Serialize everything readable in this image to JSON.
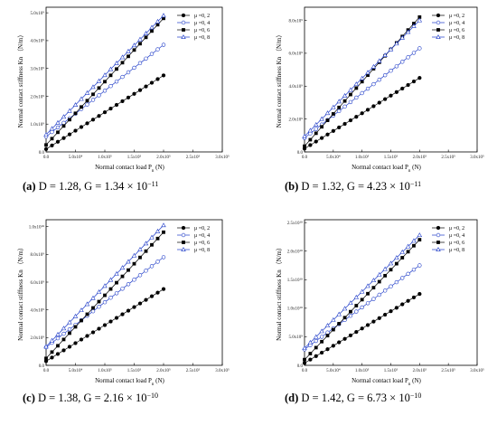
{
  "chart_data": [
    {
      "type": "line",
      "panel": "a",
      "caption": {
        "label": "(a)",
        "text": "D = 1.28, G = 1.34 × 10",
        "exponent": "−11"
      },
      "xlabel": "Normal contact load P",
      "xlabel_sub": "n",
      "xlabel_unit": " (N)",
      "ylabel": "Normal contact stiffness Kn （N/m）",
      "xlim": [
        0,
        300000
      ],
      "ylim": [
        0,
        5200000000
      ],
      "xtick_values": [
        0,
        50000,
        100000,
        150000,
        200000,
        250000,
        300000
      ],
      "xtick_labels": [
        "0.0",
        "5.0x10⁴",
        "1.0x10⁵",
        "1.5x10⁵",
        "2.0x10⁵",
        "2.5x10⁵",
        "3.0x10⁵"
      ],
      "ytick_values": [
        0,
        1000000000,
        2000000000,
        3000000000,
        4000000000,
        5000000000
      ],
      "ytick_labels": [
        "0.0",
        "1.0x10⁹",
        "2.0x10⁹",
        "3.0x10⁹",
        "4.0x10⁹",
        "5.0x10⁹"
      ],
      "legend": "top-right",
      "series": [
        {
          "name": "μ =0, 2",
          "marker": "circle-filled",
          "color": "#000000",
          "start": [
            0,
            100000000
          ],
          "end": [
            200000,
            2750000000
          ]
        },
        {
          "name": "μ =0, 4",
          "marker": "circle-open",
          "color": "#1f3cc8",
          "start": [
            0,
            550000000
          ],
          "end": [
            200000,
            3850000000
          ]
        },
        {
          "name": "μ =0, 6",
          "marker": "square-filled",
          "color": "#000000",
          "start": [
            0,
            250000000
          ],
          "end": [
            200000,
            4800000000
          ]
        },
        {
          "name": "μ =0, 8",
          "marker": "triangle-open",
          "color": "#1f3cc8",
          "start": [
            0,
            620000000
          ],
          "end": [
            200000,
            4900000000
          ]
        }
      ]
    },
    {
      "type": "line",
      "panel": "b",
      "caption": {
        "label": "(b)",
        "text": "D = 1.32, G = 4.23 × 10",
        "exponent": "−11"
      },
      "xlabel": "Normal contact load P",
      "xlabel_sub": "n",
      "xlabel_unit": " (N)",
      "ylabel": "Normal contact stiffness Kn （N/m）",
      "xlim": [
        0,
        300000
      ],
      "ylim": [
        0,
        8800000000
      ],
      "xtick_values": [
        0,
        50000,
        100000,
        150000,
        200000,
        250000,
        300000
      ],
      "xtick_labels": [
        "0.0",
        "5.0x10⁴",
        "1.0x10⁵",
        "1.5x10⁵",
        "2.0x10⁵",
        "2.5x10⁵",
        "3.0x10⁵"
      ],
      "ytick_values": [
        0,
        2000000000,
        4000000000,
        6000000000,
        8000000000
      ],
      "ytick_labels": [
        "0.0",
        "2.0x10⁹",
        "4.0x10⁹",
        "6.0x10⁹",
        "8.0x10⁹"
      ],
      "legend": "top-right",
      "series": [
        {
          "name": "μ =0, 2",
          "marker": "circle-filled",
          "color": "#000000",
          "start": [
            0,
            200000000
          ],
          "end": [
            200000,
            4500000000
          ]
        },
        {
          "name": "μ =0, 4",
          "marker": "circle-open",
          "color": "#1f3cc8",
          "start": [
            0,
            850000000
          ],
          "end": [
            200000,
            6300000000
          ]
        },
        {
          "name": "μ =0, 6",
          "marker": "square-filled",
          "color": "#000000",
          "start": [
            0,
            350000000
          ],
          "end": [
            200000,
            8200000000
          ]
        },
        {
          "name": "μ =0, 8",
          "marker": "triangle-open",
          "color": "#1f3cc8",
          "start": [
            0,
            950000000
          ],
          "end": [
            200000,
            8000000000
          ]
        }
      ]
    },
    {
      "type": "line",
      "panel": "c",
      "caption": {
        "label": "(c)",
        "text": "D = 1.38, G = 2.16 × 10",
        "exponent": "−10"
      },
      "xlabel": "Normal contact load P",
      "xlabel_sub": "n",
      "xlabel_unit": " (N)",
      "ylabel": "Normal contact stiffness Kn （N/m）",
      "xlim": [
        0,
        300000
      ],
      "ylim": [
        0,
        10500000000
      ],
      "xtick_values": [
        0,
        50000,
        100000,
        150000,
        200000,
        250000,
        300000
      ],
      "xtick_labels": [
        "0.0",
        "5.0x10⁴",
        "1.0x10⁵",
        "1.5x10⁵",
        "2.0x10⁵",
        "2.5x10⁵",
        "3.0x10⁵"
      ],
      "ytick_values": [
        0,
        2000000000,
        4000000000,
        6000000000,
        8000000000,
        10000000000
      ],
      "ytick_labels": [
        "0.0",
        "2.0x10⁹",
        "4.0x10⁹",
        "6.0x10⁹",
        "8.0x10⁹",
        "1.0x10¹⁰"
      ],
      "legend": "top-right",
      "series": [
        {
          "name": "μ =0, 2",
          "marker": "circle-filled",
          "color": "#000000",
          "start": [
            0,
            300000000
          ],
          "end": [
            200000,
            5500000000
          ]
        },
        {
          "name": "μ =0, 4",
          "marker": "circle-open",
          "color": "#1f3cc8",
          "start": [
            0,
            1300000000
          ],
          "end": [
            200000,
            7800000000
          ]
        },
        {
          "name": "μ =0, 6",
          "marker": "square-filled",
          "color": "#000000",
          "start": [
            0,
            500000000
          ],
          "end": [
            200000,
            9600000000
          ]
        },
        {
          "name": "μ =0, 8",
          "marker": "triangle-open",
          "color": "#1f3cc8",
          "start": [
            0,
            1350000000
          ],
          "end": [
            200000,
            10100000000
          ]
        }
      ]
    },
    {
      "type": "line",
      "panel": "d",
      "caption": {
        "label": "(d)",
        "text": "D = 1.42, G = 6.73 × 10",
        "exponent": "−10"
      },
      "xlabel": "Normal contact load P",
      "xlabel_sub": "n",
      "xlabel_unit": " (N)",
      "ylabel": "Normal contact stiffness Kn （N/m）",
      "xlim": [
        0,
        300000
      ],
      "ylim": [
        0,
        25500000000
      ],
      "xtick_values": [
        0,
        50000,
        100000,
        150000,
        200000,
        250000,
        300000
      ],
      "xtick_labels": [
        "0.0",
        "5.0x10⁴",
        "1.0x10⁵",
        "1.5x10⁵",
        "2.0x10⁵",
        "2.5x10⁵",
        "3.0x10⁵"
      ],
      "ytick_values": [
        0,
        5000000000,
        10000000000,
        15000000000,
        20000000000,
        25000000000
      ],
      "ytick_labels": [
        "0.0",
        "5.0x10⁹",
        "1.0x10¹⁰",
        "1.5x10¹⁰",
        "2.0x10¹⁰",
        "2.5x10¹⁰"
      ],
      "legend": "top-right",
      "series": [
        {
          "name": "μ =0, 2",
          "marker": "circle-filled",
          "color": "#000000",
          "start": [
            0,
            400000000
          ],
          "end": [
            200000,
            12500000000
          ]
        },
        {
          "name": "μ =0, 4",
          "marker": "circle-open",
          "color": "#1f3cc8",
          "start": [
            0,
            2800000000
          ],
          "end": [
            200000,
            17500000000
          ]
        },
        {
          "name": "μ =0, 6",
          "marker": "square-filled",
          "color": "#000000",
          "start": [
            0,
            1000000000
          ],
          "end": [
            200000,
            22000000000
          ]
        },
        {
          "name": "μ =0, 8",
          "marker": "triangle-open",
          "color": "#1f3cc8",
          "start": [
            0,
            3000000000
          ],
          "end": [
            200000,
            22800000000
          ]
        }
      ]
    }
  ]
}
